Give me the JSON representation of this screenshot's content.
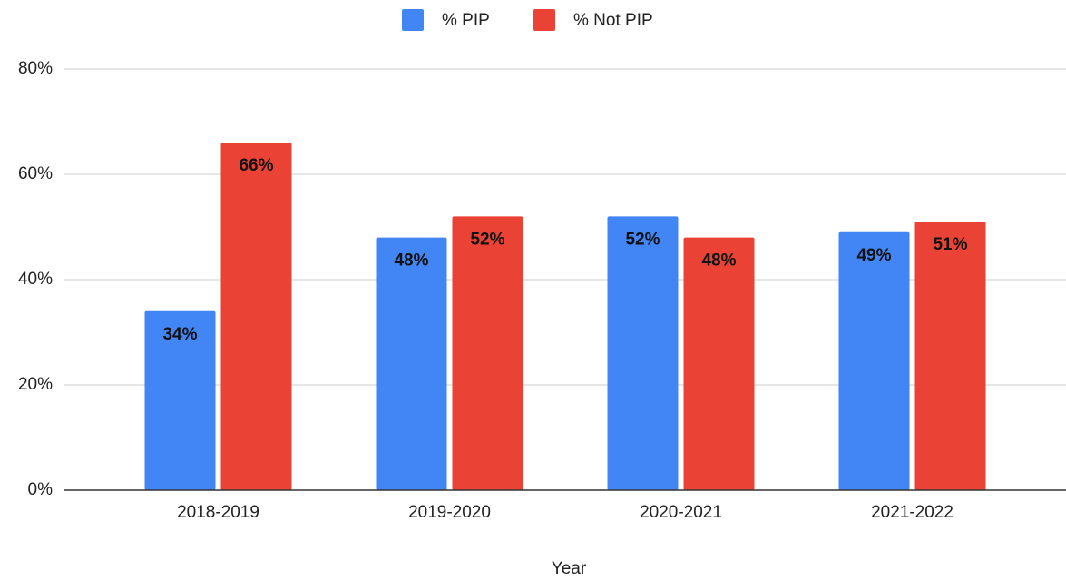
{
  "chart_data": {
    "type": "bar",
    "x_label": "Year",
    "categories": [
      "2018-2019",
      "2019-2020",
      "2020-2021",
      "2021-2022"
    ],
    "series": [
      {
        "name": "% PIP",
        "color": "#4285f4",
        "values": [
          34,
          48,
          52,
          49
        ],
        "value_labels": [
          "34%",
          "48%",
          "52%",
          "49%"
        ]
      },
      {
        "name": "% Not PIP",
        "color": "#ea4335",
        "values": [
          66,
          52,
          48,
          51
        ],
        "value_labels": [
          "66%",
          "52%",
          "48%",
          "51%"
        ]
      }
    ],
    "ylim": [
      0,
      80
    ],
    "yticks": [
      {
        "value": 0,
        "label": "0%"
      },
      {
        "value": 20,
        "label": "20%"
      },
      {
        "value": 40,
        "label": "40%"
      },
      {
        "value": 60,
        "label": "60%"
      },
      {
        "value": 80,
        "label": "80%"
      }
    ],
    "grid": true,
    "legend": "top"
  }
}
